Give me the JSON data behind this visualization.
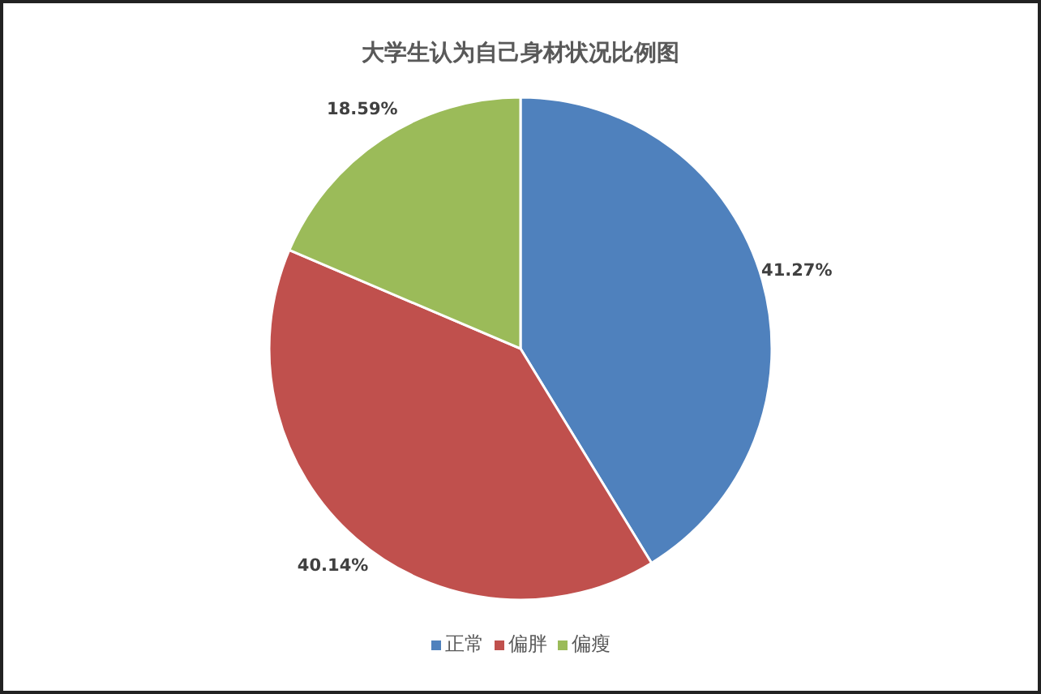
{
  "chart_data": {
    "type": "pie",
    "title": "大学生认为自己身材状况比例图",
    "categories": [
      "正常",
      "偏胖",
      "偏瘦"
    ],
    "values": [
      41.27,
      40.14,
      18.59
    ],
    "value_labels": [
      "41.27%",
      "40.14%",
      "18.59%"
    ],
    "colors": [
      "#4f81bd",
      "#c0504d",
      "#9bbb59"
    ],
    "legend": "bottom"
  }
}
